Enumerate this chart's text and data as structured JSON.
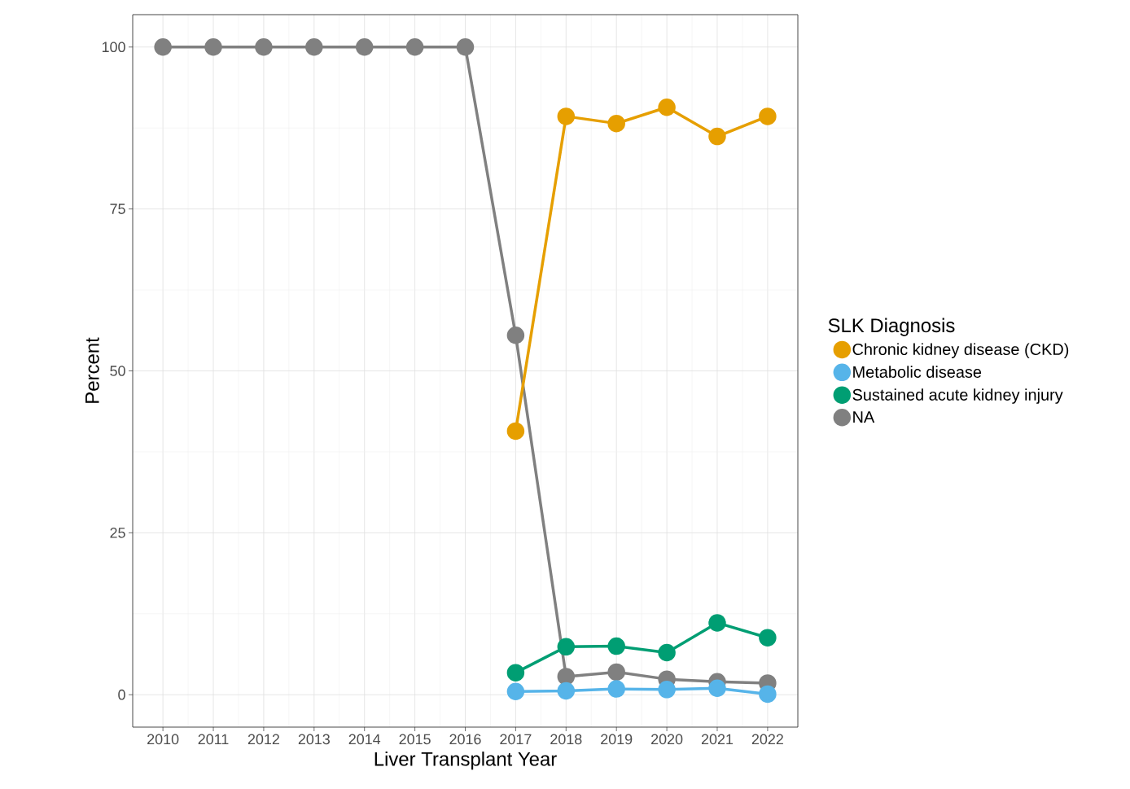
{
  "chart_data": {
    "type": "line",
    "xlabel": "Liver Transplant Year",
    "ylabel": "Percent",
    "legend_title": "SLK Diagnosis",
    "x": [
      2010,
      2011,
      2012,
      2013,
      2014,
      2015,
      2016,
      2017,
      2018,
      2019,
      2020,
      2021,
      2022
    ],
    "series": [
      {
        "name": "Chronic kidney disease (CKD)",
        "color": "#e69f00",
        "values": [
          null,
          null,
          null,
          null,
          null,
          null,
          null,
          40.7,
          89.3,
          88.2,
          90.7,
          86.2,
          89.3
        ]
      },
      {
        "name": "Metabolic disease",
        "color": "#56b4e9",
        "values": [
          null,
          null,
          null,
          null,
          null,
          null,
          null,
          0.5,
          0.6,
          0.9,
          0.8,
          1.0,
          0.1
        ]
      },
      {
        "name": "Sustained acute kidney injury",
        "color": "#009e73",
        "values": [
          null,
          null,
          null,
          null,
          null,
          null,
          null,
          3.4,
          7.4,
          7.5,
          6.5,
          11.1,
          8.8
        ]
      },
      {
        "name": "NA",
        "color": "#808080",
        "values": [
          100,
          100,
          100,
          100,
          100,
          100,
          100,
          55.5,
          2.8,
          3.5,
          2.4,
          2.0,
          1.8
        ]
      }
    ],
    "xlim": [
      2009.4,
      2022.6
    ],
    "ylim": [
      -5,
      105
    ],
    "xticks": [
      2010,
      2011,
      2012,
      2013,
      2014,
      2015,
      2016,
      2017,
      2018,
      2019,
      2020,
      2021,
      2022
    ],
    "yticks": [
      0,
      25,
      50,
      75,
      100
    ],
    "grid": true,
    "legend": "right",
    "marker": "circle",
    "line_style": "solid"
  }
}
